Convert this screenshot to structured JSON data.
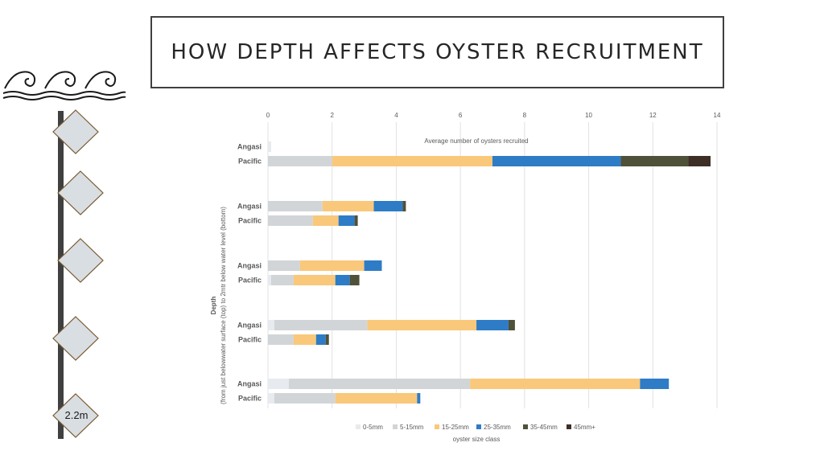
{
  "slide": {
    "title": "HOW DEPTH AFFECTS OYSTER RECRUITMENT",
    "depth_marker_label": "2.2m"
  },
  "chart_data": {
    "type": "bar",
    "orientation": "horizontal",
    "stacked": true,
    "title": "Average number of oysters recruited",
    "xlabel": "",
    "ylabel_bold": "Depth",
    "ylabel_sub": "(from just belowwater surface (top) to 2mtr below water level (bottom)",
    "xlim": [
      0,
      14
    ],
    "xticks": [
      0,
      2,
      4,
      6,
      8,
      10,
      12,
      14
    ],
    "x_axis_position": "top",
    "grid": true,
    "legend_title": "oyster size class",
    "legend_position": "bottom",
    "series": [
      {
        "name": "0-5mm",
        "color": "#e7ebef"
      },
      {
        "name": "5-15mm",
        "color": "#d2d5d7"
      },
      {
        "name": "15-25mm",
        "color": "#f9c87b"
      },
      {
        "name": "25-35mm",
        "color": "#2e7cc6"
      },
      {
        "name": "35-45mm",
        "color": "#4f5139"
      },
      {
        "name": "45mm+",
        "color": "#3d2f26"
      }
    ],
    "groups": [
      {
        "bars": [
          {
            "label": "Angasi",
            "values": [
              0.1,
              0,
              0,
              0,
              0,
              0
            ]
          },
          {
            "label": "Pacific",
            "values": [
              0,
              2.0,
              5.0,
              4.0,
              2.1,
              0.7
            ]
          }
        ]
      },
      {
        "bars": [
          {
            "label": "Angasi",
            "values": [
              0,
              1.7,
              1.6,
              0.9,
              0.1,
              0
            ]
          },
          {
            "label": "Pacific",
            "values": [
              0,
              1.4,
              0.8,
              0.5,
              0.1,
              0
            ]
          }
        ]
      },
      {
        "bars": [
          {
            "label": "Angasi",
            "values": [
              0,
              1.0,
              2.0,
              0.55,
              0,
              0
            ]
          },
          {
            "label": "Pacific",
            "values": [
              0.1,
              0.7,
              1.3,
              0.45,
              0.3,
              0
            ]
          }
        ]
      },
      {
        "bars": [
          {
            "label": "Angasi",
            "values": [
              0.2,
              2.9,
              3.4,
              1.0,
              0.2,
              0
            ]
          },
          {
            "label": "Pacific",
            "values": [
              0,
              0.8,
              0.7,
              0.3,
              0.1,
              0
            ]
          }
        ]
      },
      {
        "bars": [
          {
            "label": "Angasi",
            "values": [
              0.65,
              5.65,
              5.3,
              0.9,
              0,
              0
            ]
          },
          {
            "label": "Pacific",
            "values": [
              0.2,
              1.9,
              2.55,
              0.1,
              0,
              0
            ]
          }
        ]
      }
    ]
  }
}
